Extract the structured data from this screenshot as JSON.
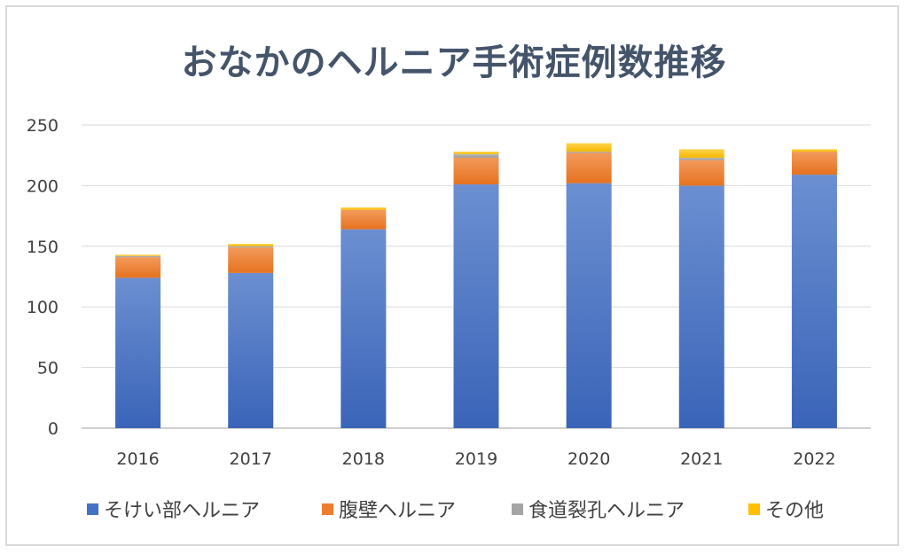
{
  "chart_data": {
    "type": "bar",
    "stacked": true,
    "title": "おなかのヘルニア手術症例数推移",
    "xlabel": "",
    "ylabel": "",
    "ylim": [
      0,
      250
    ],
    "yticks": [
      "0",
      "50",
      "100",
      "150",
      "200",
      "250"
    ],
    "grid": true,
    "legend_position": "bottom",
    "categories": [
      "2016",
      "2017",
      "2018",
      "2019",
      "2020",
      "2021",
      "2022"
    ],
    "series": [
      {
        "name": "そけい部ヘルニア",
        "color": "#4472c4",
        "values": [
          124,
          128,
          164,
          201,
          202,
          200,
          209
        ]
      },
      {
        "name": "腹壁ヘルニア",
        "color": "#ed7d31",
        "values": [
          17,
          21,
          16,
          22,
          25,
          21,
          19
        ]
      },
      {
        "name": "食道裂孔ヘルニア",
        "color": "#a5a5a5",
        "values": [
          1,
          1,
          0,
          3,
          1,
          2,
          0
        ]
      },
      {
        "name": "その他",
        "color": "#ffc000",
        "values": [
          1,
          2,
          2,
          2,
          7,
          7,
          2
        ]
      }
    ]
  }
}
